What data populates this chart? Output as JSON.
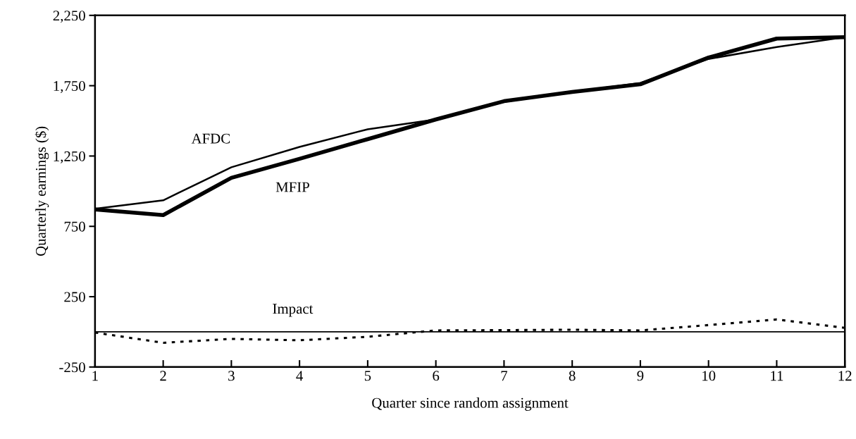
{
  "chart_data": {
    "type": "line",
    "xlabel": "Quarter since random assignment",
    "ylabel": "Quarterly earnings ($)",
    "x": [
      1,
      2,
      3,
      4,
      5,
      6,
      7,
      8,
      9,
      10,
      11,
      12
    ],
    "xlim": [
      1,
      12
    ],
    "xticks": [
      1,
      2,
      3,
      4,
      5,
      6,
      7,
      8,
      9,
      10,
      11,
      12
    ],
    "ylim": [
      -250,
      2250
    ],
    "yticks": [
      -250,
      250,
      750,
      {
        "value": 1250,
        "label": "1,250"
      },
      {
        "value": 1750,
        "label": "1,750"
      },
      {
        "value": 2250,
        "label": "2,250"
      }
    ],
    "series": [
      {
        "name": "AFDC",
        "color": "#000000",
        "line_style": "solid",
        "values": [
          875,
          935,
          1170,
          1315,
          1440,
          1510,
          1635,
          1705,
          1770,
          1940,
          2025,
          2095
        ]
      },
      {
        "name": "MFIP",
        "color": "#000000",
        "line_style": "solid",
        "values": [
          870,
          830,
          1095,
          1230,
          1370,
          1510,
          1640,
          1705,
          1760,
          1950,
          2085,
          2095
        ]
      },
      {
        "name": "Impact",
        "color": "#000000",
        "line_style": "dotted",
        "values": [
          -5,
          -78,
          -50,
          -60,
          -35,
          10,
          12,
          15,
          10,
          48,
          88,
          28
        ]
      }
    ],
    "ref_lines": [
      {
        "axis": "y",
        "value": 0,
        "color": "#000000",
        "line_style": "solid"
      }
    ],
    "grid": false,
    "legend": false,
    "marker": "none"
  }
}
